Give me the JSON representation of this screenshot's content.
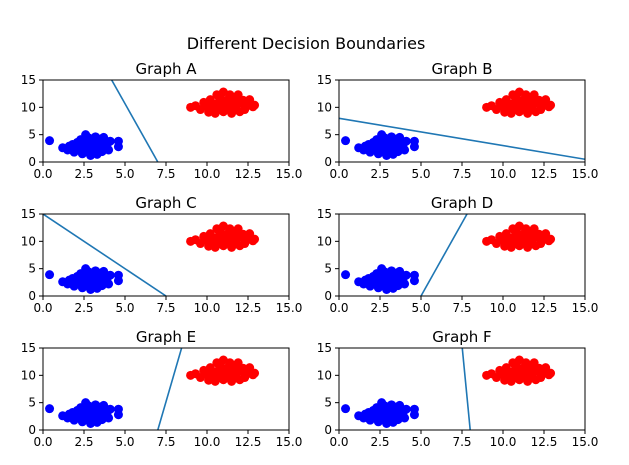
{
  "figure": {
    "title": "Different Decision Boundaries",
    "colors": {
      "class_low": "#0000ff",
      "class_high": "#ff0000",
      "boundary": "#1f77b4"
    }
  },
  "chart_data": {
    "type": "scatter",
    "title": "Different Decision Boundaries",
    "grid": false,
    "points_blue": [
      [
        0.4,
        3.9
      ],
      [
        1.2,
        2.6
      ],
      [
        1.5,
        2.2
      ],
      [
        1.6,
        2.9
      ],
      [
        1.8,
        3.2
      ],
      [
        1.9,
        1.8
      ],
      [
        2.0,
        2.7
      ],
      [
        2.1,
        3.6
      ],
      [
        2.2,
        2.2
      ],
      [
        2.3,
        4.1
      ],
      [
        2.4,
        1.5
      ],
      [
        2.4,
        3.0
      ],
      [
        2.5,
        2.5
      ],
      [
        2.5,
        3.9
      ],
      [
        2.6,
        5.0
      ],
      [
        2.6,
        1.9
      ],
      [
        2.7,
        3.2
      ],
      [
        2.8,
        2.3
      ],
      [
        2.8,
        4.4
      ],
      [
        2.9,
        1.2
      ],
      [
        2.9,
        3.6
      ],
      [
        3.0,
        2.8
      ],
      [
        3.0,
        4.0
      ],
      [
        3.1,
        1.8
      ],
      [
        3.1,
        3.3
      ],
      [
        3.2,
        2.4
      ],
      [
        3.2,
        4.6
      ],
      [
        3.3,
        1.4
      ],
      [
        3.3,
        3.0
      ],
      [
        3.4,
        3.8
      ],
      [
        3.4,
        2.1
      ],
      [
        3.5,
        4.2
      ],
      [
        3.5,
        2.7
      ],
      [
        3.6,
        3.4
      ],
      [
        3.6,
        1.9
      ],
      [
        3.7,
        4.5
      ],
      [
        3.8,
        2.6
      ],
      [
        3.8,
        3.6
      ],
      [
        3.9,
        3.1
      ],
      [
        4.0,
        2.2
      ],
      [
        4.1,
        3.8
      ],
      [
        4.6,
        3.8
      ],
      [
        4.6,
        2.8
      ]
    ],
    "points_red": [
      [
        9.0,
        10.0
      ],
      [
        9.3,
        10.3
      ],
      [
        9.6,
        9.6
      ],
      [
        9.8,
        10.9
      ],
      [
        10.0,
        10.2
      ],
      [
        10.1,
        9.1
      ],
      [
        10.2,
        11.4
      ],
      [
        10.3,
        9.9
      ],
      [
        10.4,
        10.6
      ],
      [
        10.5,
        8.9
      ],
      [
        10.6,
        12.3
      ],
      [
        10.6,
        9.6
      ],
      [
        10.7,
        10.9
      ],
      [
        10.8,
        11.7
      ],
      [
        10.9,
        10.1
      ],
      [
        11.0,
        9.2
      ],
      [
        11.0,
        12.8
      ],
      [
        11.1,
        10.6
      ],
      [
        11.2,
        11.3
      ],
      [
        11.2,
        9.7
      ],
      [
        11.3,
        10.1
      ],
      [
        11.4,
        12.3
      ],
      [
        11.5,
        8.9
      ],
      [
        11.5,
        10.9
      ],
      [
        11.6,
        9.6
      ],
      [
        11.7,
        11.6
      ],
      [
        11.8,
        10.3
      ],
      [
        11.9,
        12.3
      ],
      [
        12.0,
        9.2
      ],
      [
        12.1,
        10.8
      ],
      [
        12.2,
        11.3
      ],
      [
        12.3,
        9.6
      ],
      [
        12.4,
        10.2
      ],
      [
        12.6,
        11.4
      ],
      [
        12.8,
        10.1
      ],
      [
        12.9,
        10.4
      ]
    ],
    "panels": [
      {
        "title": "Graph A",
        "line": [
          [
            4.0,
            16.0
          ],
          [
            7.0,
            0.0
          ]
        ]
      },
      {
        "title": "Graph B",
        "line": [
          [
            0.0,
            8.0
          ],
          [
            15.0,
            0.5
          ]
        ]
      },
      {
        "title": "Graph C",
        "line": [
          [
            0.0,
            15.0
          ],
          [
            7.5,
            0.0
          ]
        ]
      },
      {
        "title": "Graph D",
        "line": [
          [
            5.0,
            0.0
          ],
          [
            7.9,
            15.5
          ]
        ]
      },
      {
        "title": "Graph E",
        "line": [
          [
            7.0,
            0.0
          ],
          [
            8.5,
            15.5
          ]
        ]
      },
      {
        "title": "Graph F",
        "line": [
          [
            7.5,
            15.5
          ],
          [
            8.0,
            0.0
          ]
        ]
      }
    ],
    "xlim": [
      0,
      15
    ],
    "ylim": [
      0,
      15
    ],
    "xticks": [
      "0.0",
      "2.5",
      "5.0",
      "7.5",
      "10.0",
      "12.5",
      "15.0"
    ],
    "yticks": [
      "0",
      "5",
      "10",
      "15"
    ]
  }
}
